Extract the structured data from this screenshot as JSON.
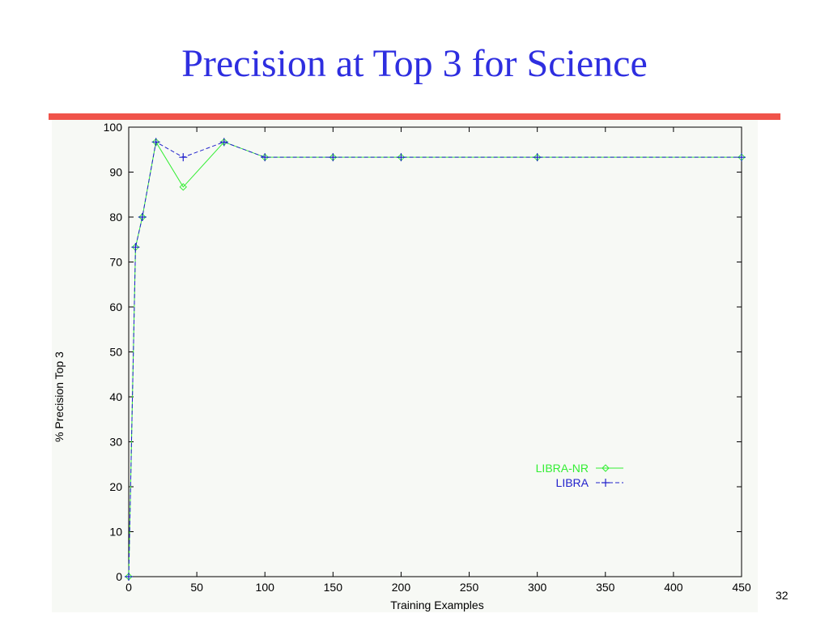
{
  "slide": {
    "title": "Precision at Top 3 for Science",
    "page_number": "32",
    "rule_color": "#f0534a",
    "title_color": "#2e2ee0"
  },
  "chart_data": {
    "type": "line",
    "title": "",
    "xlabel": "Training Examples",
    "ylabel": "% Precision Top 3",
    "xlim": [
      0,
      450
    ],
    "ylim": [
      0,
      100
    ],
    "x_ticks": [
      0,
      50,
      100,
      150,
      200,
      250,
      300,
      350,
      400,
      450
    ],
    "y_ticks": [
      0,
      10,
      20,
      30,
      40,
      50,
      60,
      70,
      80,
      90,
      100
    ],
    "grid": false,
    "legend_position": "lower-right",
    "series": [
      {
        "name": "LIBRA-NR",
        "color": "#33ee33",
        "line_style": "solid",
        "marker": "diamond",
        "x": [
          0,
          5,
          10,
          20,
          40,
          70,
          100,
          150,
          200,
          300,
          450
        ],
        "y": [
          0,
          73.3,
          80,
          96.7,
          86.7,
          96.7,
          93.3,
          93.3,
          93.3,
          93.3,
          93.3
        ]
      },
      {
        "name": "LIBRA",
        "color": "#2222cc",
        "line_style": "dashed",
        "marker": "plus",
        "x": [
          0,
          5,
          10,
          20,
          40,
          70,
          100,
          150,
          200,
          300,
          450
        ],
        "y": [
          0,
          73.3,
          80,
          96.7,
          93.3,
          96.7,
          93.3,
          93.3,
          93.3,
          93.3,
          93.3
        ]
      }
    ]
  }
}
